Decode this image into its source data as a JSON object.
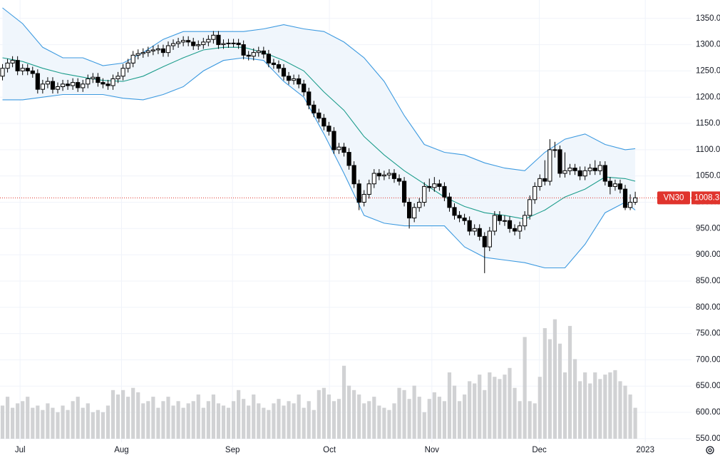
{
  "chart_data": {
    "type": "candlestick",
    "symbol": "VN30",
    "open": [
      1240,
      1255,
      1265,
      1270,
      1250,
      1255,
      1250,
      1245,
      1215,
      1225,
      1230,
      1215,
      1220,
      1225,
      1222,
      1228,
      1218,
      1225,
      1235,
      1238,
      1228,
      1225,
      1222,
      1235,
      1240,
      1255,
      1265,
      1280,
      1283,
      1285,
      1288,
      1290,
      1292,
      1285,
      1298,
      1302,
      1305,
      1308,
      1305,
      1298,
      1300,
      1305,
      1310,
      1318,
      1300,
      1302,
      1303,
      1303,
      1300,
      1280,
      1278,
      1285,
      1288,
      1282,
      1265,
      1262,
      1255,
      1240,
      1232,
      1235,
      1225,
      1210,
      1185,
      1170,
      1160,
      1145,
      1135,
      1100,
      1105,
      1095,
      1070,
      1035,
      1000,
      1015,
      1035,
      1055,
      1050,
      1052,
      1055,
      1045,
      1040,
      1000,
      970,
      990,
      1000,
      1030,
      1028,
      1035,
      1030,
      1010,
      990,
      975,
      970,
      965,
      945,
      950,
      935,
      915,
      945,
      975,
      965,
      965,
      950,
      945,
      955,
      975,
      1005,
      1030,
      1045,
      1040,
      1100,
      1100,
      1055,
      1060,
      1065,
      1060,
      1050,
      1060,
      1065,
      1060,
      1070,
      1040,
      1030,
      1035,
      1025,
      990,
      1000
    ],
    "high": [
      1263,
      1273,
      1278,
      1278,
      1263,
      1263,
      1258,
      1253,
      1233,
      1238,
      1238,
      1228,
      1233,
      1233,
      1236,
      1236,
      1233,
      1243,
      1246,
      1246,
      1236,
      1233,
      1243,
      1248,
      1263,
      1273,
      1288,
      1291,
      1293,
      1296,
      1298,
      1300,
      1300,
      1306,
      1310,
      1313,
      1316,
      1316,
      1313,
      1308,
      1313,
      1318,
      1326,
      1326,
      1310,
      1311,
      1311,
      1311,
      1308,
      1288,
      1293,
      1296,
      1296,
      1290,
      1273,
      1270,
      1263,
      1248,
      1243,
      1243,
      1233,
      1218,
      1193,
      1178,
      1168,
      1153,
      1143,
      1113,
      1113,
      1103,
      1078,
      1043,
      1023,
      1043,
      1063,
      1063,
      1060,
      1063,
      1063,
      1053,
      1048,
      1008,
      998,
      1008,
      1038,
      1045,
      1048,
      1043,
      1038,
      1018,
      998,
      983,
      978,
      973,
      958,
      958,
      943,
      953,
      983,
      983,
      975,
      973,
      958,
      963,
      983,
      1013,
      1038,
      1053,
      1080,
      1120,
      1115,
      1108,
      1095,
      1073,
      1073,
      1068,
      1068,
      1073,
      1080,
      1078,
      1078,
      1048,
      1043,
      1043,
      1033,
      1015,
      1020
    ],
    "low": [
      1232,
      1247,
      1257,
      1242,
      1242,
      1242,
      1237,
      1207,
      1207,
      1217,
      1207,
      1207,
      1212,
      1214,
      1214,
      1210,
      1210,
      1217,
      1227,
      1220,
      1217,
      1214,
      1214,
      1227,
      1232,
      1247,
      1257,
      1272,
      1275,
      1277,
      1280,
      1282,
      1277,
      1277,
      1290,
      1294,
      1297,
      1297,
      1290,
      1290,
      1292,
      1297,
      1302,
      1292,
      1292,
      1294,
      1295,
      1292,
      1272,
      1270,
      1270,
      1277,
      1274,
      1257,
      1254,
      1247,
      1232,
      1224,
      1224,
      1217,
      1202,
      1177,
      1162,
      1152,
      1137,
      1127,
      1092,
      1092,
      1087,
      1062,
      1027,
      985,
      992,
      1007,
      1027,
      1042,
      1042,
      1044,
      1037,
      1032,
      992,
      950,
      962,
      982,
      992,
      1020,
      1020,
      1022,
      1002,
      982,
      967,
      962,
      957,
      937,
      937,
      927,
      865,
      907,
      937,
      957,
      955,
      942,
      937,
      930,
      947,
      967,
      997,
      1022,
      1032,
      1032,
      1085,
      1047,
      1047,
      1052,
      1052,
      1042,
      1042,
      1052,
      1052,
      1052,
      1032,
      1015,
      1022,
      1017,
      985,
      985,
      995
    ],
    "close": [
      1255,
      1265,
      1270,
      1250,
      1255,
      1250,
      1245,
      1215,
      1225,
      1230,
      1215,
      1220,
      1225,
      1222,
      1228,
      1218,
      1225,
      1235,
      1238,
      1228,
      1225,
      1222,
      1235,
      1240,
      1255,
      1265,
      1280,
      1283,
      1285,
      1288,
      1290,
      1292,
      1285,
      1298,
      1302,
      1305,
      1308,
      1305,
      1298,
      1300,
      1305,
      1310,
      1318,
      1300,
      1302,
      1303,
      1303,
      1300,
      1280,
      1278,
      1285,
      1288,
      1282,
      1265,
      1262,
      1255,
      1240,
      1232,
      1235,
      1225,
      1210,
      1185,
      1170,
      1160,
      1145,
      1135,
      1100,
      1105,
      1095,
      1070,
      1035,
      1000,
      1015,
      1035,
      1055,
      1050,
      1052,
      1055,
      1045,
      1040,
      1000,
      970,
      990,
      1000,
      1030,
      1028,
      1035,
      1030,
      1010,
      990,
      975,
      970,
      965,
      945,
      950,
      935,
      915,
      945,
      975,
      965,
      965,
      950,
      945,
      955,
      975,
      1005,
      1030,
      1045,
      1040,
      1100,
      1100,
      1055,
      1060,
      1065,
      1060,
      1050,
      1060,
      1065,
      1060,
      1070,
      1040,
      1030,
      1035,
      1025,
      990,
      1000,
      1008.3
    ],
    "volume": [
      75,
      95,
      70,
      80,
      85,
      95,
      70,
      75,
      65,
      80,
      70,
      60,
      75,
      65,
      85,
      95,
      70,
      80,
      60,
      65,
      60,
      75,
      110,
      100,
      110,
      95,
      115,
      105,
      80,
      85,
      95,
      70,
      85,
      95,
      75,
      85,
      70,
      80,
      85,
      100,
      70,
      85,
      100,
      80,
      75,
      70,
      85,
      110,
      90,
      75,
      100,
      80,
      70,
      65,
      80,
      90,
      75,
      85,
      80,
      100,
      70,
      85,
      65,
      110,
      115,
      100,
      85,
      90,
      165,
      120,
      110,
      100,
      80,
      85,
      95,
      75,
      70,
      65,
      80,
      115,
      110,
      90,
      120,
      95,
      60,
      90,
      105,
      95,
      85,
      150,
      120,
      85,
      100,
      130,
      125,
      145,
      110,
      150,
      140,
      135,
      145,
      160,
      115,
      85,
      230,
      85,
      80,
      140,
      250,
      225,
      270,
      215,
      150,
      255,
      180,
      130,
      150,
      125,
      150,
      135,
      145,
      150,
      155,
      130,
      120,
      100,
      70
    ],
    "bands": {
      "x": [
        0,
        4,
        8,
        12,
        16,
        20,
        24,
        28,
        32,
        36,
        40,
        44,
        48,
        52,
        56,
        60,
        64,
        68,
        72,
        76,
        80,
        84,
        88,
        92,
        96,
        100,
        104,
        108,
        112,
        116,
        120,
        124,
        126
      ],
      "upper": [
        1370,
        1340,
        1295,
        1275,
        1275,
        1260,
        1265,
        1285,
        1310,
        1325,
        1325,
        1325,
        1325,
        1330,
        1338,
        1330,
        1325,
        1305,
        1275,
        1230,
        1165,
        1110,
        1095,
        1090,
        1075,
        1065,
        1060,
        1095,
        1120,
        1130,
        1110,
        1100,
        1102
      ],
      "middle": [
        1275,
        1268,
        1255,
        1245,
        1238,
        1232,
        1230,
        1240,
        1258,
        1275,
        1290,
        1295,
        1295,
        1285,
        1270,
        1250,
        1210,
        1175,
        1125,
        1090,
        1060,
        1035,
        1010,
        992,
        980,
        975,
        968,
        985,
        1010,
        1025,
        1048,
        1045,
        1040
      ],
      "lower": [
        1195,
        1195,
        1200,
        1205,
        1205,
        1205,
        1198,
        1195,
        1205,
        1220,
        1250,
        1270,
        1275,
        1270,
        1230,
        1200,
        1130,
        1055,
        975,
        960,
        955,
        955,
        955,
        915,
        895,
        890,
        885,
        875,
        875,
        920,
        980,
        1000,
        985
      ]
    },
    "ylim": [
      543,
      1385
    ],
    "yticks": [
      {
        "value": 1350,
        "label": "1350.00"
      },
      {
        "value": 1300,
        "label": "1300.00"
      },
      {
        "value": 1250,
        "label": "1250.00"
      },
      {
        "value": 1200,
        "label": "1200.00"
      },
      {
        "value": 1150,
        "label": "1150.00"
      },
      {
        "value": 1100,
        "label": "1100.00"
      },
      {
        "value": 1050,
        "label": "1050.00"
      },
      {
        "value": 1000,
        "label": "1000.00"
      },
      {
        "value": 950,
        "label": "950.00"
      },
      {
        "value": 900,
        "label": "900.00"
      },
      {
        "value": 850,
        "label": "850.00"
      },
      {
        "value": 800,
        "label": "800.00"
      },
      {
        "value": 750,
        "label": "750.00"
      },
      {
        "value": 700,
        "label": "700.00"
      },
      {
        "value": 650,
        "label": "650.00"
      },
      {
        "value": 600,
        "label": "600.00"
      },
      {
        "value": 550,
        "label": "550.00"
      }
    ],
    "xlim": [
      -0.5,
      137.2
    ],
    "xticks": [
      {
        "value": 3.5,
        "label": "Jul"
      },
      {
        "value": 23.7,
        "label": "Aug"
      },
      {
        "value": 45.8,
        "label": "Sep"
      },
      {
        "value": 65.1,
        "label": "Oct"
      },
      {
        "value": 85.5,
        "label": "Nov"
      },
      {
        "value": 106.9,
        "label": "Dec"
      },
      {
        "value": 128,
        "label": "2023"
      }
    ],
    "grid": true,
    "colors": {
      "up": "#ffffff",
      "down": "#000000",
      "outline": "#000000",
      "volume": "#c9cacd",
      "upper": "#3d9ae0",
      "middle": "#1d9d8c",
      "lower": "#3d9ae0",
      "band_fill": "#eef5fc",
      "price_line": "#e0342d"
    }
  }
}
